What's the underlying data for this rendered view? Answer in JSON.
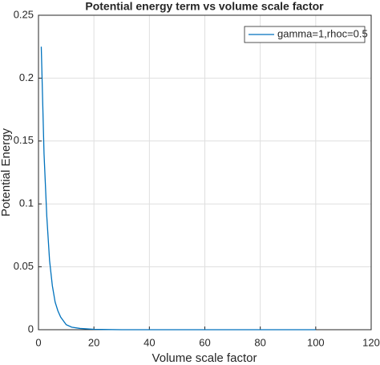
{
  "chart_data": {
    "type": "line",
    "title": "Potential energy term vs volume scale factor",
    "x_label": "Volume scale factor",
    "y_label": "Potential Energy",
    "x": [
      1,
      2,
      3,
      4,
      5,
      6,
      7,
      8,
      10,
      12,
      15,
      20,
      30,
      40,
      60,
      80,
      100
    ],
    "series": [
      {
        "name": "gamma=1,rhoc=0.5",
        "color": "#0072bd",
        "values": [
          0.225,
          0.14,
          0.09,
          0.055,
          0.035,
          0.022,
          0.015,
          0.01,
          0.004,
          0.002,
          0.001,
          0.0003,
          0,
          0,
          0,
          0,
          0
        ]
      }
    ],
    "xlim": [
      0,
      120
    ],
    "xticks": [
      0,
      20,
      40,
      60,
      80,
      100,
      120
    ],
    "ylim": [
      0,
      0.25
    ],
    "yticks": [
      0,
      0.05,
      0.1,
      0.15,
      0.2,
      0.25
    ],
    "grid": true,
    "legend_position": "upper-right"
  }
}
